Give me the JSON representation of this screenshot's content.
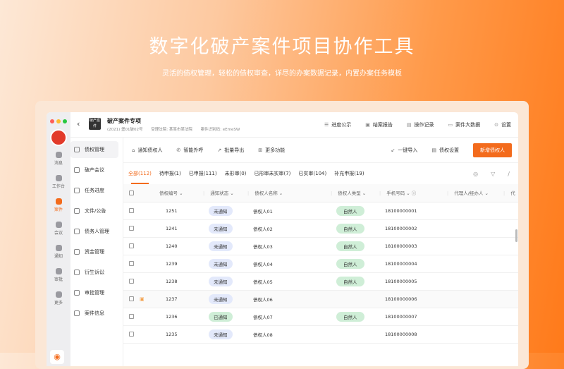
{
  "hero": {
    "title": "数字化破产案件项目协作工具",
    "subtitle": "灵活的债权管理，轻松的债权审查，详尽的办案数据记录，内置办案任务模板"
  },
  "rail": [
    {
      "label": "消息",
      "icon": "message-icon"
    },
    {
      "label": "工作台",
      "icon": "workbench-icon"
    },
    {
      "label": "案件",
      "icon": "case-icon",
      "active": true
    },
    {
      "label": "会议",
      "icon": "meeting-icon"
    },
    {
      "label": "通知",
      "icon": "phone-icon"
    },
    {
      "label": "审批",
      "icon": "approval-icon"
    },
    {
      "label": "更多",
      "icon": "more-icon"
    }
  ],
  "header": {
    "back": "‹",
    "logo_text": "破产案件",
    "title": "破产案件专项",
    "case_no": "(2021) 堡01破02号",
    "court": "受理法院:  某某市某法院",
    "code": "案件识别码: eEmeSW",
    "nav": [
      {
        "label": "进度公示",
        "icon": "☰"
      },
      {
        "label": "结案报告",
        "icon": "▣"
      },
      {
        "label": "操作记录",
        "icon": "▤"
      },
      {
        "label": "案件大数据",
        "icon": "▭"
      },
      {
        "label": "设置",
        "icon": "⊙"
      }
    ]
  },
  "sidebar": [
    {
      "label": "债权管理",
      "active": true
    },
    {
      "label": "破产会议"
    },
    {
      "label": "任务进度"
    },
    {
      "label": "文件/公告"
    },
    {
      "label": "债务人管理"
    },
    {
      "label": "资金管理"
    },
    {
      "label": "衍生诉讼"
    },
    {
      "label": "审批管理"
    },
    {
      "label": "案件信息"
    }
  ],
  "toolbar": {
    "left": [
      {
        "label": "通知债权人",
        "icon": "⌂"
      },
      {
        "label": "智能外呼",
        "icon": "✆"
      },
      {
        "label": "批量导出",
        "icon": "↗"
      },
      {
        "label": "更多功能",
        "icon": "⊞"
      }
    ],
    "import": "一键导入",
    "settings": "债权设置",
    "add": "新增债权人"
  },
  "tabs": [
    "全部(112)",
    "待申报(1)",
    "已申报(111)",
    "未形审(0)",
    "已形审未实审(7)",
    "已实审(104)",
    "补充申报(19)"
  ],
  "columns": [
    "债权编号 ⌄",
    "通知状态 ⌄",
    "债权人名称 ⌄",
    "债权人类型 ⌄",
    "手机号码 ⌄ ⓘ",
    "代理人/经办人 ⌄",
    "代"
  ],
  "rows": [
    {
      "id": "1251",
      "status": "未通知",
      "name": "债权人01",
      "type": "自然人",
      "phone": "18100000001"
    },
    {
      "id": "1241",
      "status": "未通知",
      "name": "债权人02",
      "type": "自然人",
      "phone": "18100000002"
    },
    {
      "id": "1240",
      "status": "未通知",
      "name": "债权人03",
      "type": "自然人",
      "phone": "18100000003"
    },
    {
      "id": "1239",
      "status": "未通知",
      "name": "债权人04",
      "type": "自然人",
      "phone": "18100000004"
    },
    {
      "id": "1238",
      "status": "未通知",
      "name": "债权人05",
      "type": "自然人",
      "phone": "18100000005"
    },
    {
      "id": "1237",
      "status": "未通知",
      "name": "债权人06",
      "type": "",
      "phone": "18100000006",
      "flag": true
    },
    {
      "id": "1236",
      "status": "已通知",
      "name": "债权人07",
      "type": "自然人",
      "phone": "18100000007"
    },
    {
      "id": "1235",
      "status": "未通知",
      "name": "债权人08",
      "type": "",
      "phone": "18100000008"
    }
  ],
  "colors": {
    "accent": "#f36b1c",
    "pending_badge": "#e3e9fb",
    "done_badge": "#cfeed7"
  }
}
